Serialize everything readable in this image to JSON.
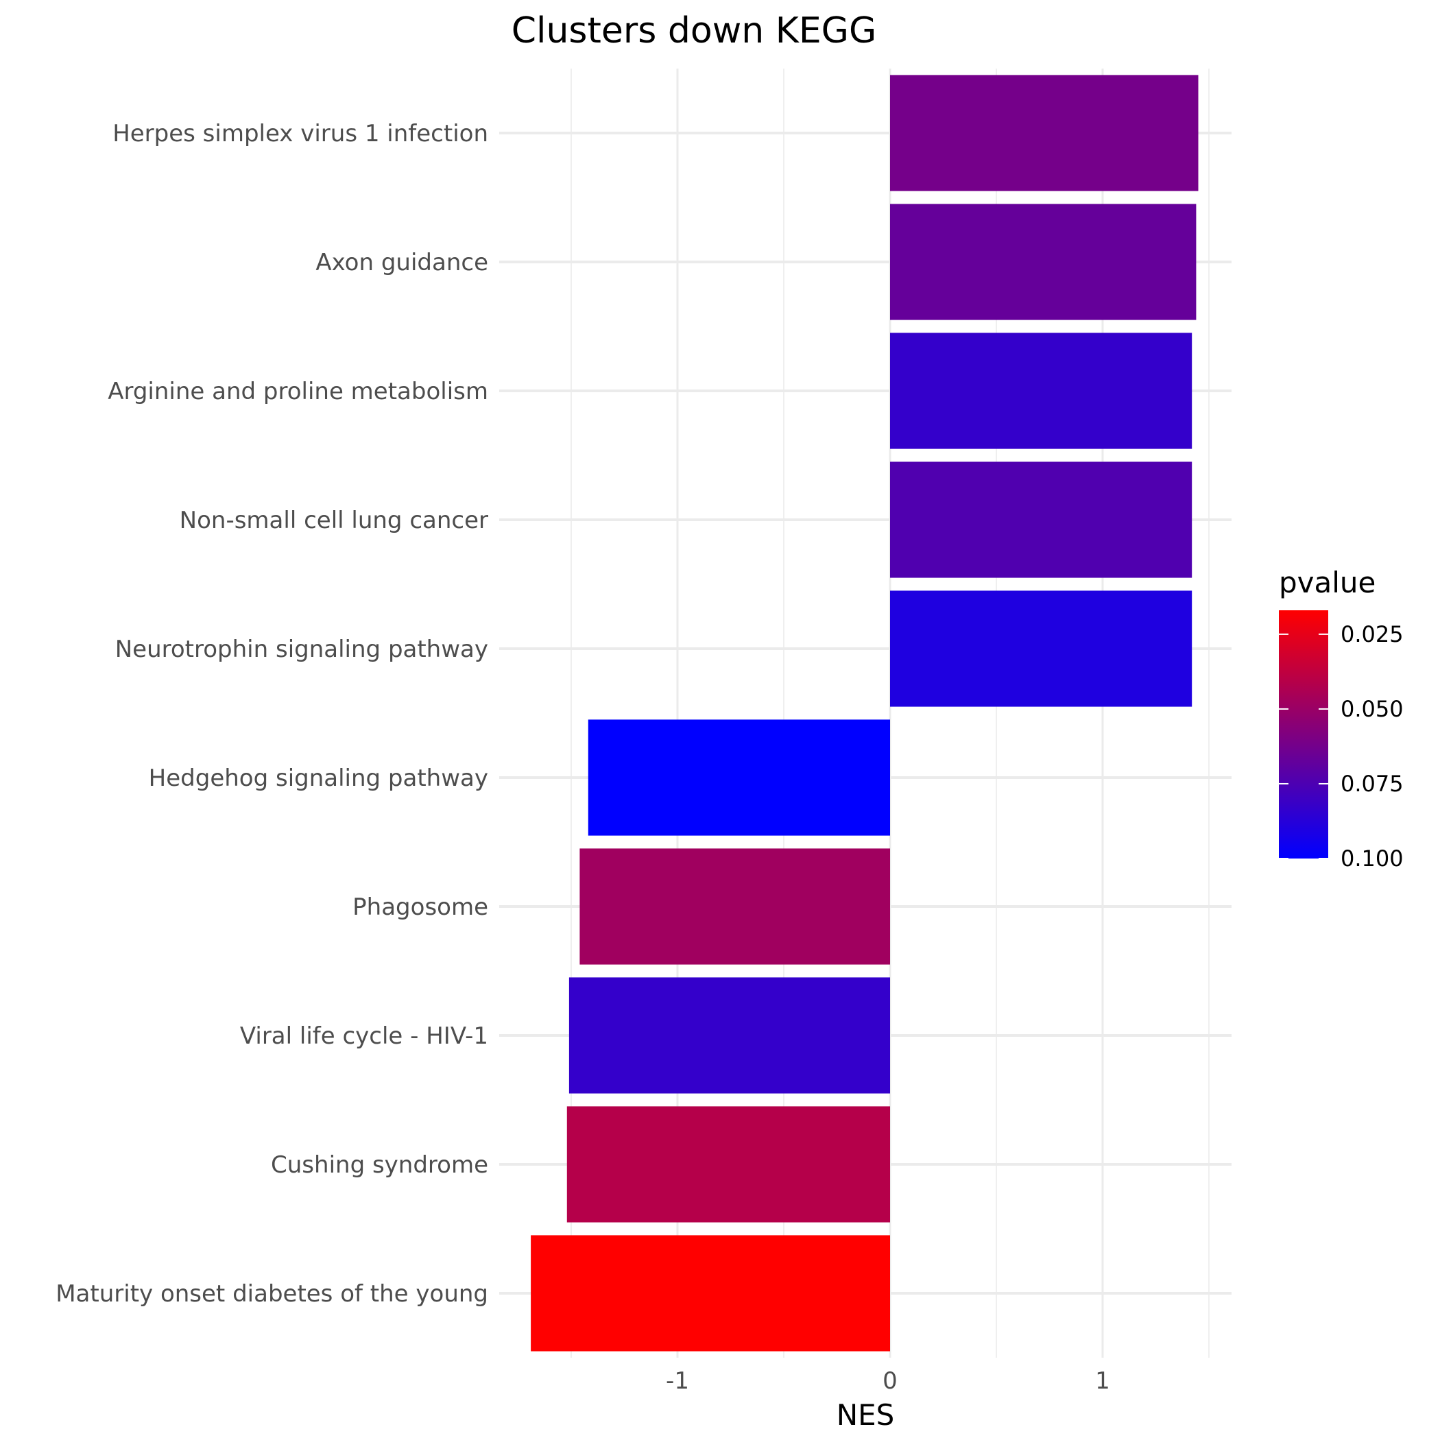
{
  "chart_data": {
    "type": "bar",
    "orientation": "horizontal",
    "title": "Clusters down KEGG",
    "xlabel": "NES",
    "ylabel": "",
    "xlim": [
      -1.7,
      1.6
    ],
    "xticks": [
      -1,
      0,
      1
    ],
    "xtick_labels": [
      "-1",
      "0",
      "1"
    ],
    "grid": true,
    "categories": [
      "Herpes simplex virus 1 infection",
      "Axon guidance",
      "Arginine and proline metabolism",
      "Non-small cell lung cancer",
      "Neurotrophin signaling pathway",
      "Hedgehog signaling pathway",
      "Phagosome",
      "Viral life cycle - HIV-1",
      "Cushing syndrome",
      "Maturity onset diabetes of the young"
    ],
    "values": [
      1.45,
      1.44,
      1.42,
      1.42,
      1.42,
      -1.42,
      -1.46,
      -1.51,
      -1.52,
      -1.69
    ],
    "pvalue": [
      0.062,
      0.067,
      0.083,
      0.074,
      0.09,
      0.1,
      0.048,
      0.083,
      0.041,
      0.017
    ],
    "color_scale": {
      "title": "pvalue",
      "low_color": "#ff0000",
      "high_color": "#0000ff",
      "range": [
        0.017,
        0.1
      ],
      "ticks": [
        0.025,
        0.05,
        0.075,
        0.1
      ],
      "tick_labels": [
        "0.025",
        "0.050",
        "0.075",
        "0.100"
      ]
    },
    "legend_position": "right"
  }
}
